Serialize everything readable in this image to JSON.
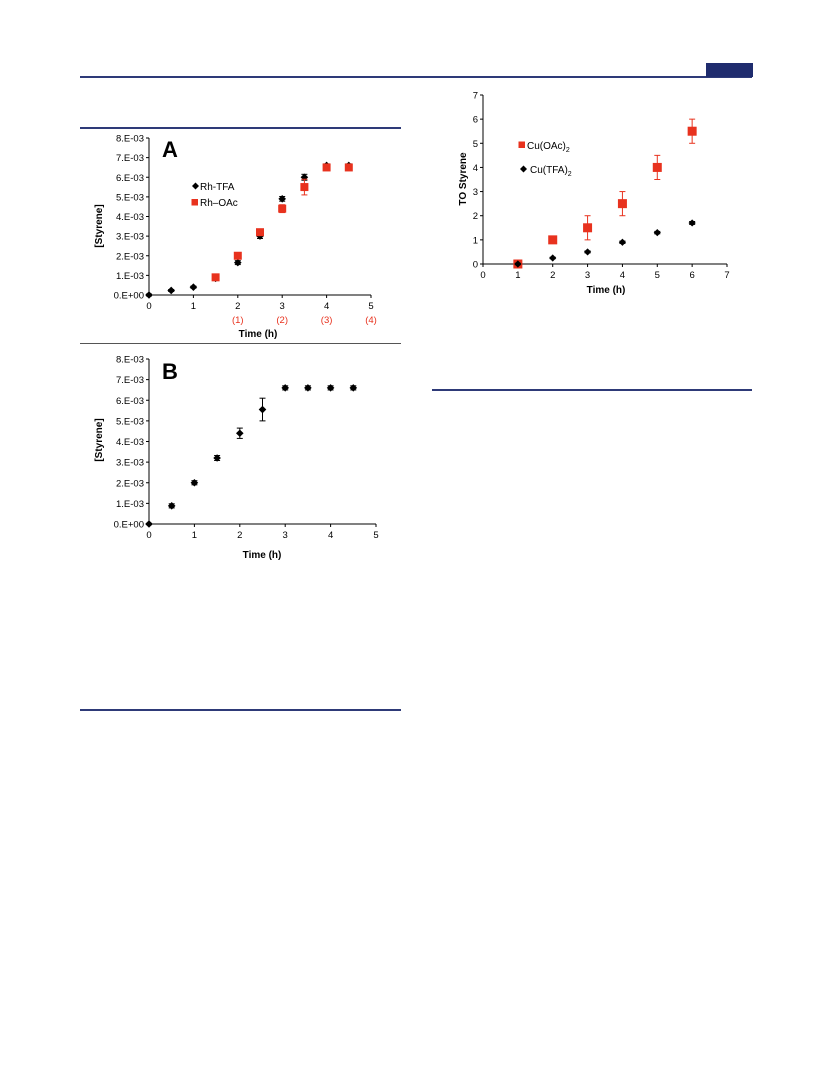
{
  "colors": {
    "rule": "#2e3a78",
    "series_black": "#000000",
    "series_red": "#e8321e"
  },
  "chart_data": [
    {
      "id": "A",
      "type": "scatter",
      "panel_label": "A",
      "xlabel": "Time (h)",
      "ylabel": "[Styrene]",
      "xlim": [
        0,
        5
      ],
      "ylim": [
        0,
        0.008
      ],
      "x_ticks": [
        "0",
        "1",
        "2",
        "3",
        "4",
        "5"
      ],
      "y_ticks": [
        "0.E+00",
        "1.E-03",
        "2.E-03",
        "3.E-03",
        "4.E-03",
        "5.E-03",
        "6.E-03",
        "7.E-03",
        "8.E-03"
      ],
      "secondary_x_labels": [
        {
          "x": 2,
          "label": "(1)"
        },
        {
          "x": 3,
          "label": "(2)"
        },
        {
          "x": 4,
          "label": "(3)"
        },
        {
          "x": 5,
          "label": "(4)"
        }
      ],
      "legend_position": "top-left",
      "series": [
        {
          "name": "Rh-TFA",
          "marker": "diamond",
          "color": "#000000",
          "x": [
            0,
            0.5,
            1,
            1.5,
            2,
            2.5,
            3,
            3.5,
            4,
            4.5
          ],
          "y": [
            0,
            0.00023,
            0.0004,
            0.00085,
            0.00165,
            0.003,
            0.0049,
            0.006,
            0.0066,
            0.0066
          ],
          "err": [
            5e-05,
            5e-05,
            5e-05,
            0.0001,
            0.0001,
            0.00012,
            0.00012,
            0.00015,
            8e-05,
            8e-05
          ]
        },
        {
          "name": "Rh–OAc",
          "marker": "square",
          "color": "#e8321e",
          "x": [
            1.5,
            2,
            2.5,
            3,
            3.5,
            4,
            4.5
          ],
          "y": [
            0.0009,
            0.002,
            0.0032,
            0.0044,
            0.0055,
            0.0065,
            0.0065
          ],
          "err": [
            0.0001,
            0.0001,
            0.0001,
            0.0002,
            0.0004,
            0.0001,
            0.0001
          ]
        }
      ]
    },
    {
      "id": "B",
      "type": "scatter",
      "panel_label": "B",
      "xlabel": "Time (h)",
      "ylabel": "[Styrene]",
      "xlim": [
        0,
        5
      ],
      "ylim": [
        0,
        0.008
      ],
      "x_ticks": [
        "0",
        "1",
        "2",
        "3",
        "4",
        "5"
      ],
      "y_ticks": [
        "0.E+00",
        "1.E-03",
        "2.E-03",
        "3.E-03",
        "4.E-03",
        "5.E-03",
        "6.E-03",
        "7.E-03",
        "8.E-03"
      ],
      "series": [
        {
          "name": "",
          "marker": "diamond",
          "color": "#000000",
          "x": [
            0,
            0.5,
            1,
            1.5,
            2,
            2.5,
            3,
            3.5,
            4,
            4.5
          ],
          "y": [
            0,
            0.00088,
            0.002,
            0.0032,
            0.0044,
            0.00555,
            0.0066,
            0.0066,
            0.0066,
            0.0066
          ],
          "err": [
            3e-05,
            0.0001,
            0.0001,
            0.00012,
            0.00025,
            0.00055,
            0.0001,
            0.0001,
            0.0001,
            0.0001
          ]
        }
      ]
    },
    {
      "id": "C",
      "type": "scatter",
      "xlabel": "Time (h)",
      "ylabel": "TO Styrene",
      "xlim": [
        0,
        7
      ],
      "ylim": [
        0,
        7
      ],
      "x_ticks": [
        "0",
        "1",
        "2",
        "3",
        "4",
        "5",
        "6",
        "7"
      ],
      "y_ticks": [
        "0",
        "1",
        "2",
        "3",
        "4",
        "5",
        "6",
        "7"
      ],
      "legend_position": "top-left",
      "series": [
        {
          "name_base": "Cu(OAc)",
          "name_sub": "2",
          "marker": "square",
          "color": "#e8321e",
          "x": [
            1,
            2,
            3,
            4,
            5,
            6
          ],
          "y": [
            0,
            1,
            1.5,
            2.5,
            4,
            5.5
          ],
          "err": [
            0.05,
            0.08,
            0.5,
            0.5,
            0.5,
            0.5
          ]
        },
        {
          "name_base": "Cu(TFA)",
          "name_sub": "2",
          "marker": "diamond",
          "color": "#000000",
          "x": [
            1,
            2,
            3,
            4,
            5,
            6
          ],
          "y": [
            0,
            0.25,
            0.5,
            0.9,
            1.3,
            1.7
          ],
          "err": [
            0.03,
            0.03,
            0.04,
            0.05,
            0.05,
            0.06
          ]
        }
      ]
    }
  ]
}
